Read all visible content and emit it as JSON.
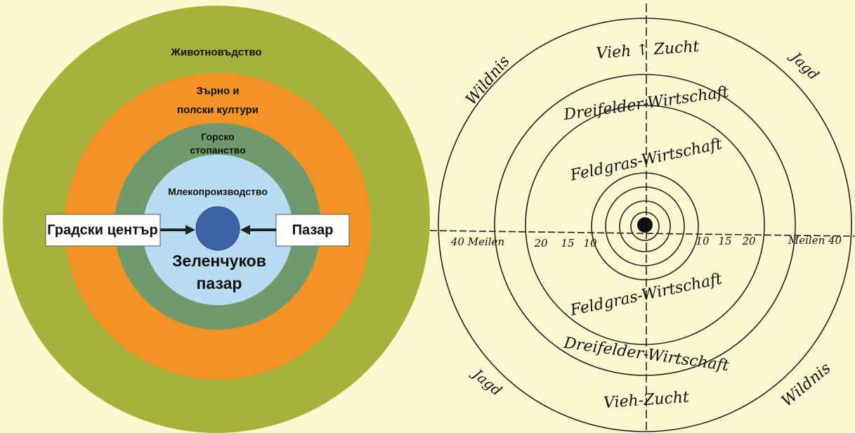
{
  "left_diagram": {
    "rings": [
      "Животновъдство",
      "Зърно и",
      "полски култури",
      "Горско",
      "стопанство",
      "Млекопроизводство"
    ],
    "left_box": "Градски център",
    "right_box": "Пазар",
    "center": [
      "Зеленчуков",
      "пазар"
    ]
  },
  "right_diagram": {
    "labels": [
      "Wildnis",
      "Vieh ↑ Zucht",
      "Jagd",
      "Dreifelder-Wirtschaft",
      "Feldgras-Wirtschaft",
      "40 Meilen",
      "20",
      "15",
      "10",
      "10",
      "15",
      "20",
      "Meilen 40",
      "Feldgras-Wirtschaft",
      "Dreifelder-Wirtschaft",
      "Jagd",
      "Vieh-Zucht",
      "Wildnis"
    ]
  }
}
